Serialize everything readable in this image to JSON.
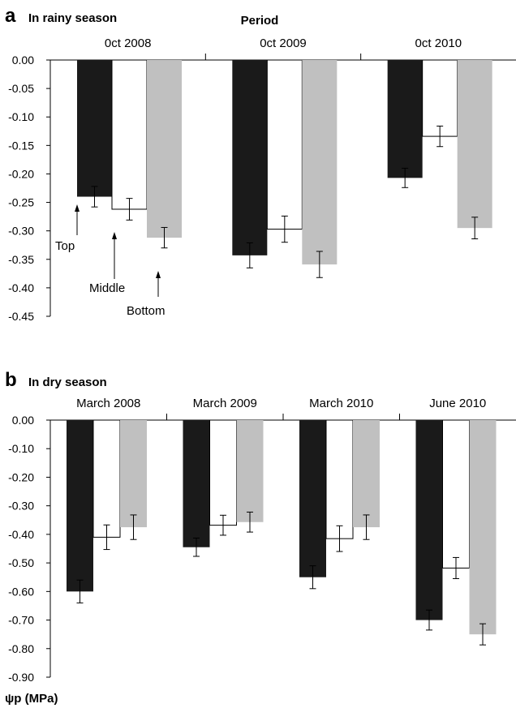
{
  "chart_data": [
    {
      "type": "bar",
      "panel_letter": "a",
      "title": "In rainy season",
      "subtitle": "Period",
      "categories": [
        "0ct  2008",
        "0ct  2009",
        "0ct  2010"
      ],
      "ylim": [
        -0.45,
        0.0
      ],
      "yticks": [
        0.0,
        -0.05,
        -0.1,
        -0.15,
        -0.2,
        -0.25,
        -0.3,
        -0.35,
        -0.4,
        -0.45
      ],
      "ytick_labels": [
        "0.00",
        "-0.05",
        "-0.10",
        "-0.15",
        "-0.20",
        "-0.25",
        "-0.30",
        "-0.35",
        "-0.40",
        "-0.45"
      ],
      "series": [
        {
          "name": "Top",
          "color": "#1a1a1a",
          "values": [
            -0.24,
            -0.343,
            -0.207
          ],
          "errors": [
            0.018,
            0.022,
            0.017
          ]
        },
        {
          "name": "Middle",
          "color": "#ffffff",
          "values": [
            -0.262,
            -0.297,
            -0.134
          ],
          "errors": [
            0.019,
            0.023,
            0.018
          ]
        },
        {
          "name": "Bottom",
          "color": "#c0c0c0",
          "values": [
            -0.312,
            -0.359,
            -0.295
          ],
          "errors": [
            0.018,
            0.023,
            0.019
          ]
        }
      ],
      "annotations": [
        "Top",
        "Middle",
        "Bottom"
      ],
      "grid": false
    },
    {
      "type": "bar",
      "panel_letter": "b",
      "title": "In dry season",
      "categories": [
        "March 2008",
        "March 2009",
        "March 2010",
        "June 2010"
      ],
      "ylim": [
        -0.9,
        0.0
      ],
      "yticks": [
        0.0,
        -0.1,
        -0.2,
        -0.3,
        -0.4,
        -0.5,
        -0.6,
        -0.7,
        -0.8,
        -0.9
      ],
      "ytick_labels": [
        "0.00",
        "-0.10",
        "-0.20",
        "-0.30",
        "-0.40",
        "-0.50",
        "-0.60",
        "-0.70",
        "-0.80",
        "-0.90"
      ],
      "ylabel": "ψp (MPa)",
      "series": [
        {
          "name": "Top",
          "color": "#1a1a1a",
          "values": [
            -0.6,
            -0.445,
            -0.55,
            -0.7
          ],
          "errors": [
            0.04,
            0.032,
            0.04,
            0.035
          ]
        },
        {
          "name": "Middle",
          "color": "#ffffff",
          "values": [
            -0.41,
            -0.368,
            -0.415,
            -0.518
          ],
          "errors": [
            0.043,
            0.035,
            0.045,
            0.037
          ]
        },
        {
          "name": "Bottom",
          "color": "#c0c0c0",
          "values": [
            -0.375,
            -0.357,
            -0.375,
            -0.75
          ],
          "errors": [
            0.043,
            0.035,
            0.043,
            0.037
          ]
        }
      ],
      "grid": false
    }
  ]
}
